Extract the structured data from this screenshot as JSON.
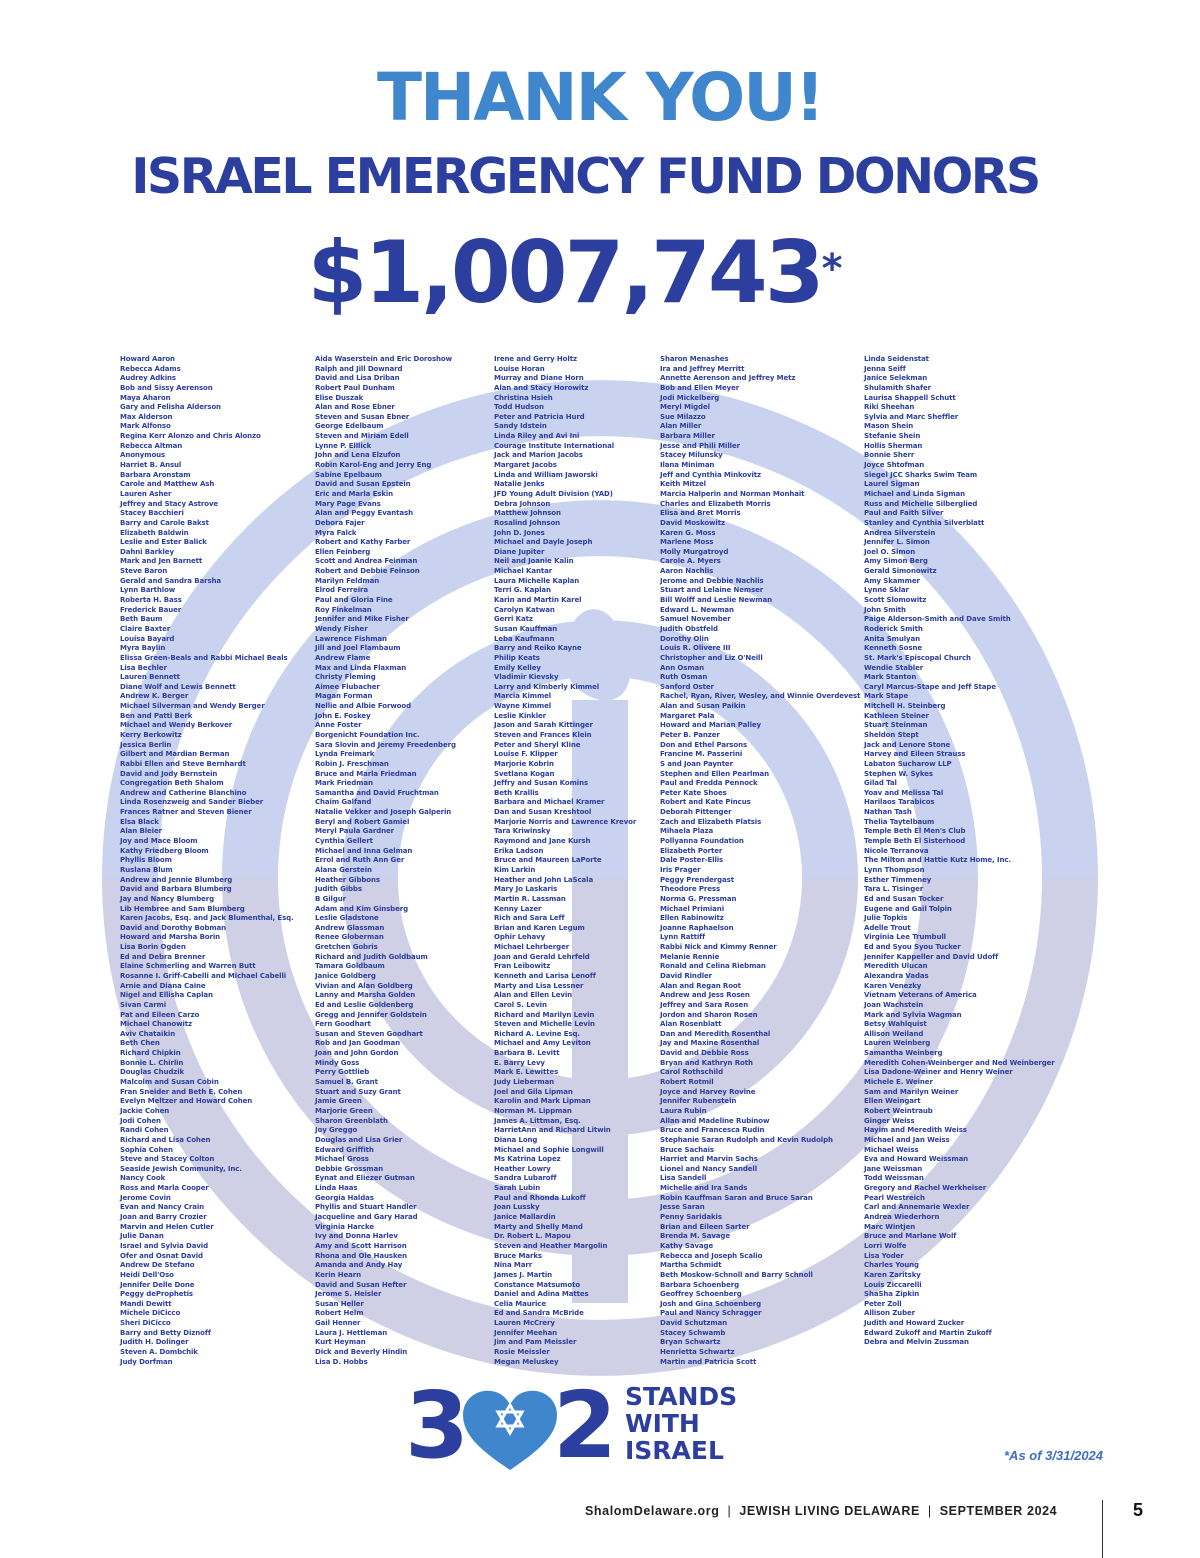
{
  "header": {
    "title": "THANK YOU!",
    "subtitle": "ISRAEL EMERGENCY FUND DONORS",
    "amount": "$1,007,743",
    "amount_note_mark": "*"
  },
  "columns": [
    [
      "Howard Aaron",
      "Rebecca Adams",
      "Audrey Adkins",
      "Bob and Sissy Aerenson",
      "Maya Aharon",
      "Gary and Felisha Alderson",
      "Max Alderson",
      "Mark Alfonso",
      "Regina Kerr Alonzo and Chris Alonzo",
      "Rebecca Altman",
      "Anonymous",
      "Harriet B. Ansul",
      "Barbara Aronstam",
      "Carole and Matthew Ash",
      "Lauren Asher",
      "Jeffrey and Stacy Astrove",
      "Stacey Bacchieri",
      "Barry and Carole Bakst",
      "Elizabeth Baldwin",
      "Leslie and Ester Balick",
      "Dahni Barkley",
      "Mark and Jen Barnett",
      "Steve Baron",
      "Gerald and Sandra Barsha",
      "Lynn Barthlow",
      "Roberta H. Bass",
      "Frederick Bauer",
      "Beth Baum",
      "Claire Baxter",
      "Louisa Bayard",
      "Myra Baylin",
      "Elissa Green-Beals and Rabbi Michael Beals",
      "Lisa Bechler",
      "Lauren Bennett",
      "Diane Wolf and Lewis Bennett",
      "Andrew K. Berger",
      "Michael Silverman and Wendy Berger",
      "Ben and Patti Berk",
      "Michael and Wendy Berkover",
      "Kerry Berkowitz",
      "Jessica Berlin",
      "Gilbert and Mardian Berman",
      "Rabbi Ellen and Steve Bernhardt",
      "David and Jody Bernstein",
      "Congregation Beth Shalom",
      "Andrew and Catherine Blanchino",
      "Linda Rosenzweig and Sander Bieber",
      "Frances Ratner and Steven Biener",
      "Elsa Black",
      "Alan Bleier",
      "Joy and Mace Bloom",
      "Kathy Friedberg Bloom",
      "Phyllis Bloom",
      "Ruslana Blum",
      "Andrew and Jennie Blumberg",
      "David and Barbara Blumberg",
      "Jay and Nancy Blumberg",
      "Lib Hembree and Sam Blumberg",
      "Karen Jacobs, Esq. and Jack Blumenthal, Esq.",
      "David and Dorothy Bobman",
      "Howard and Marsha Borin",
      "Lisa Borin Ogden",
      "Ed and Debra Brenner",
      "Elaine Schmerling and Warren Butt",
      "Rosanne I. Griff-Cabelli and Michael Cabelli",
      "Arnie and Diana Caine",
      "Nigel and Ellisha Caplan",
      "Sivan Carmi",
      "Pat and Eileen Carzo",
      "Michael Chanowitz",
      "Aviv Chataikin",
      "Beth Chen",
      "Richard Chipkin",
      "Bonnie L. Chirlin",
      "Douglas Chudzik",
      "Malcolm and Susan Cobin",
      "Fran Sneider and Beth E. Cohen",
      "Evelyn Meltzer and Howard Cohen",
      "Jackie Cohen",
      "Jodi Cohen",
      "Randi Cohen",
      "Richard and Lisa Cohen",
      "Sophia Cohen",
      "Steve and Stacey Colton",
      "Seaside Jewish Community, Inc.",
      "Nancy Cook",
      "Ross and Marla Cooper",
      "Jerome Covin",
      "Evan and Nancy Crain",
      "Joan and Barry Crozier",
      "Marvin and Helen Cutler",
      "Julie Danan",
      "Israel and Sylvia David",
      "Ofer and Osnat David",
      "Andrew De Stefano",
      "Heidi Dell'Oso",
      "Jennifer Delle Done",
      "Peggy deProphetis",
      "Mandi Dewitt",
      "Michele DiCicco",
      "Sheri DiCicco",
      "Barry and Betty Diznoff",
      "Judith H. Dolinger",
      "Steven A. Dombchik",
      "Judy Dorfman"
    ],
    [
      "Aida Waserstein and Eric Doroshow",
      "Ralph and Jill Downard",
      "David and Lisa Driban",
      "Robert Paul Dunham",
      "Elise Duszak",
      "Alan and Rose Ebner",
      "Steven and Susan Ebner",
      "George Edelbaum",
      "Steven and Miriam Edell",
      "Lynne P. Elllick",
      "John and Lena Elzufon",
      "Robin Karol-Eng and Jerry Eng",
      "Sabine Epelbaum",
      "David and Susan Epstein",
      "Eric and Marla Eskin",
      "Mary Page Evans",
      "Alan and Peggy Evantash",
      "Debora Fajer",
      "Myra Falck",
      "Robert and Kathy Farber",
      "Ellen Feinberg",
      "Scott and Andrea Feinman",
      "Robert and Debbie Feinson",
      "Marilyn Feldman",
      "Elrod Ferreira",
      "Paul and Gloria Fine",
      "Roy Finkelman",
      "Jennifer and Mike Fisher",
      "Wendy Fisher",
      "Lawrence Fishman",
      "Jill and Joel Flambaum",
      "Andrew Flame",
      "Max and Linda Flaxman",
      "Christy Fleming",
      "Aimee Flubacher",
      "Magan Forman",
      "Nellie and Albie Forwood",
      "John E. Foskey",
      "Anne Foster",
      "Borgenicht Foundation Inc.",
      "Sara Slovin and Jeremy Freedenberg",
      "Lynda Freimark",
      "Robin J. Freschman",
      "Bruce and Marla Friedman",
      "Mark Friedman",
      "Samantha and David Fruchtman",
      "Chaim Galfand",
      "Natalie Vekker and Joseph Galperin",
      "Beryl and Robert Gamiel",
      "Meryl Paula Gardner",
      "Cynthia Gellert",
      "Michael and Inna Gelman",
      "Errol and Ruth Ann Ger",
      "Alana Gerstein",
      "Heather Gibbons",
      "Judith Gibbs",
      "B Gilgur",
      "Adam and Kim Ginsberg",
      "Leslie Gladstone",
      "Andrew Glassman",
      "Renee Globerman",
      "Gretchen Gobris",
      "Richard and Judith Goldbaum",
      "Tamara Goldbaum",
      "Janice Goldberg",
      "Vivian and Alan Goldberg",
      "Lanny and Marsha Golden",
      "Ed and Leslie Goldenberg",
      "Gregg and Jennifer Goldstein",
      "Fern Goodhart",
      "Susan and Steven Goodhart",
      "Rob and Jan Goodman",
      "Joan and John Gordon",
      "Mindy Goss",
      "Perry Gottlieb",
      "Samuel B. Grant",
      "Stuart and Suzy Grant",
      "Jamie Green",
      "Marjorie Green",
      "Sharon Greenblath",
      "Joy Greggo",
      "Douglas and Lisa Grier",
      "Edward Griffith",
      "Michael Gross",
      "Debbie Grossman",
      "Eynat and Eliezer Gutman",
      "Linda Haas",
      "Georgia Haldas",
      "Phyllis and Stuart Handler",
      "Jacqueline and Gary Harad",
      "Virginia Harcke",
      "Ivy and Donna Harlev",
      "Amy and Scott Harrison",
      "Rhona and Ole Hausken",
      "Amanda and Andy Hay",
      "Kerin Hearn",
      "David and Susan Hefter",
      "Jerome S. Heisler",
      "Susan Heller",
      "Robert Helm",
      "Gail Henner",
      "Laura J. Hettleman",
      "Kurt Heyman",
      "Dick and Beverly Hindin",
      "Lisa D. Hobbs"
    ],
    [
      "Irene and Gerry Holtz",
      "Louise Horan",
      "Murray and Diane Horn",
      "Alan and Stacy Horowitz",
      "Christina Hsieh",
      "Todd Hudson",
      "Peter and Patricia Hurd",
      "Sandy Idstein",
      "Linda Riley and Avi Ini",
      "Courage Institute International",
      "Jack and Marion Jacobs",
      "Margaret Jacobs",
      "Linda and William Jaworski",
      "Natalie Jenks",
      "JFD Young Adult Division (YAD)",
      "Debra Johnson",
      "Matthew Johnson",
      "Rosalind Johnson",
      "John D. Jones",
      "Michael and Dayle Joseph",
      "Diane Jupiter",
      "Neil and Joanie Kalin",
      "Michael Kantar",
      "Laura Michelle Kaplan",
      "Terri G. Kaplan",
      "Karin and Martin Karel",
      "Carolyn Katwan",
      "Gerri Katz",
      "Susan Kauffman",
      "Leba Kaufmann",
      "Barry and Reiko Kayne",
      "Philip Keats",
      "Emily Kelley",
      "Vladimir Kievsky",
      "Larry and Kimberly Kimmel",
      "Marcia Kimmel",
      "Wayne Kimmel",
      "Leslie Kinkler",
      "Jason and Sarah Kittinger",
      "Steven and Frances Klein",
      "Peter and Sheryl Kline",
      "Louise F. Klipper",
      "Marjorie Kobrin",
      "Svetlana Kogan",
      "Jeffry and Susan Komins",
      "Beth Krallis",
      "Barbara and Michael Kramer",
      "Dan and Susan Kreshtool",
      "Marjorie Norris and Lawrence Krevor",
      "Tara Kriwinsky",
      "Raymond and Jane Kursh",
      "Erika Ladson",
      "Bruce and Maureen LaPorte",
      "Kim Larkin",
      "Heather and John LaScala",
      "Mary Jo Laskaris",
      "Martin R. Lassman",
      "Kenny Lazer",
      "Rich and Sara Leff",
      "Brian and Karen Legum",
      "Ophir Lehavy",
      "Michael Lehrberger",
      "Joan and Gerald Lehrfeld",
      "Fran Leibowitz",
      "Kenneth and Larisa Lenoff",
      "Marty and Lisa Lessner",
      "Alan and Ellen Levin",
      "Carol S. Levin",
      "Richard and Marilyn Levin",
      "Steven and Michelle Levin",
      "Richard A. Levine Esq.",
      "Michael and Amy Leviton",
      "Barbara B. Levitt",
      "E. Barry Levy",
      "Mark E. Lewittes",
      "Judy Lieberman",
      "Joel and Gila Lipman",
      "Karolin and Mark Lipman",
      "Norman M. Lippman",
      "James A. Littman, Esq.",
      "HarrietAnn and Richard Litwin",
      "Diana Long",
      "Michael and Sophie Longwill",
      "Ms Katrina Lopez",
      "Heather Lowry",
      "Sandra Lubaroff",
      "Sarah Lubin",
      "Paul and Rhonda Lukoff",
      "Joan Lussky",
      "Janice Mallardin",
      "Marty and Shelly Mand",
      "Dr. Robert L. Mapou",
      "Steven and Heather Margolin",
      "Bruce Marks",
      "Nina Marr",
      "James J. Martin",
      "Constance Matsumoto",
      "Daniel and Adina Mattes",
      "Celia Maurice",
      "Ed and Sandra McBride",
      "Lauren McCrery",
      "Jennifer Meehan",
      "Jim and Pam Meissler",
      "Rosie Meissler",
      "Megan Meluskey"
    ],
    [
      "Sharon Menashes",
      "Ira and Jeffrey Merritt",
      "Annette Aerenson and Jeffrey Metz",
      "Bob and Ellen Meyer",
      "Jodi Mickelberg",
      "Meryl Migdel",
      "Sue Milazzo",
      "Alan Miller",
      "Barbara Miller",
      "Jesse and Phili Miller",
      "Stacey Milunsky",
      "Ilana Miniman",
      "Jeff and Cynthia Minkovitz",
      "Keith Mitzel",
      "Marcia Halperin and Norman Monhait",
      "Charles and Elizabeth Morris",
      "Elisa and Bret Morris",
      "David Moskowitz",
      "Karen G. Moss",
      "Marlene Moss",
      "Molly Murgatroyd",
      "Carole A. Myers",
      "Aaron Nachlis",
      "Jerome and Debbie Nachlis",
      "Stuart and Lelaine Nemser",
      "Bill Wolff and Leslie Newman",
      "Edward L. Newman",
      "Samuel November",
      "Judith Obstfeld",
      "Dorothy Olin",
      "Louis R. Olivere III",
      "Christopher and Liz O'Neill",
      "Ann Osman",
      "Ruth Osman",
      "Sanford Oster",
      "Rachel, Ryan, River, Wesley, and Winnie Overdevest",
      "Alan and Susan Paikin",
      "Margaret Pala",
      "Howard and Marian Palley",
      "Peter B. Panzer",
      "Don and Ethel Parsons",
      "Francine M. Passerini",
      "S and Joan Paynter",
      "Stephen and Ellen Pearlman",
      "Paul and Fredda Pennock",
      "Peter Kate Shoes",
      "Robert and Kate Pincus",
      "Deborah Pittenger",
      "Zach and Elizabeth Platsis",
      "Mihaela Plaza",
      "Pollyanna Foundation",
      "Elizabeth Porter",
      "Dale Poster-Ellis",
      "Iris Prager",
      "Peggy Prendergast",
      "Theodore Press",
      "Norma G. Pressman",
      "Michael Primiani",
      "Ellen Rabinowitz",
      "Joanne Raphaelson",
      "Lynn Rattiff",
      "Rabbi Nick and Kimmy Renner",
      "Melanie Rennie",
      "Ronald and Celina Riebman",
      "David Rindler",
      "Alan and Regan Root",
      "Andrew and Jess Rosen",
      "Jeffrey and Sara Rosen",
      "Jordon and Sharon Rosen",
      "Alan Rosenblatt",
      "Dan and Meredith Rosenthal",
      "Jay and Maxine Rosenthal",
      "David and Debbie Ross",
      "Bryan and Kathryn Roth",
      "Carol Rothschild",
      "Robert Rotmil",
      "Joyce and Harvey Rovine",
      "Jennifer Rubenstein",
      "Laura Rubin",
      "Allan and Madeline Rubinow",
      "Bruce and Francesca Rudin",
      "Stephanie Saran Rudolph and Kevin Rudolph",
      "Bruce Sachais",
      "Harriet and Marvin Sachs",
      "Lionel and Nancy Sandell",
      "Lisa Sandell",
      "Michelle and Ira Sands",
      "Robin Kauffman Saran and Bruce Saran",
      "Jesse Saran",
      "Penny Saridakis",
      "Brian and Eileen Sarter",
      "Brenda M. Savage",
      "Kathy Savage",
      "Rebecca and Joseph Scalio",
      "Martha Schmidt",
      "Beth Moskow-Schnoll and Barry Schnoll",
      "Barbara Schoenberg",
      "Geoffrey Schoenberg",
      "Josh and Gina Schoenberg",
      "Paul and Nancy Schragger",
      "David Schutzman",
      "Stacey Schwamb",
      "Bryan Schwartz",
      "Henrietta Schwartz",
      "Martin and Patricia Scott"
    ],
    [
      "Linda Seidenstat",
      "Jenna Seiff",
      "Janice Selekman",
      "Shulamith Shafer",
      "Laurisa Shappell Schutt",
      "Riki Sheehan",
      "Sylvia and Marc Sheffler",
      "Mason Shein",
      "Stefanie Shein",
      "Hollis Sherman",
      "Bonnie Sherr",
      "Joyce Shtofman",
      "Siegel JCC Sharks Swim Team",
      "Laurel Sigman",
      "Michael and Linda Sigman",
      "Russ and Michelle Silberglied",
      "Paul and Faith Silver",
      "Stanley and Cynthia Silverblatt",
      "Andrea Silverstein",
      "Jennifer L. Simon",
      "Joel O. Simon",
      "Amy Simon Berg",
      "Gerald Simonowitz",
      "Amy Skammer",
      "Lynne Sklar",
      "Scott Slomowitz",
      "John Smith",
      "Paige Alderson-Smith and Dave Smith",
      "Roderick Smith",
      "Anita Smulyan",
      "Kenneth Sosne",
      "St. Mark's Episcopal Church",
      "Wendie Stabler",
      "Mark Stanton",
      "Caryl Marcus-Stape and Jeff Stape",
      "Mark Stape",
      "Mitchell H. Steinberg",
      "Kathleen Steiner",
      "Stuart Steinman",
      "Sheldon Stept",
      "Jack and Lenore Stone",
      "Harvey and Eileen Strauss",
      "Labaton Sucharow LLP",
      "Stephen W. Sykes",
      "Gilad Tal",
      "Yoav and Melissa Tal",
      "Harilaos Tarabicos",
      "Nathan Tash",
      "Thelia Taytelbaum",
      "Temple Beth El Men's Club",
      "Temple Beth El Sisterhood",
      "Nicole Terranova",
      "The Milton and Hattie Kutz Home, Inc.",
      "Lynn Thompson",
      "Esther Timmeney",
      "Tara L. Tisinger",
      "Ed and Susan Tocker",
      "Eugene and Gail Tolpin",
      "Julie Topkis",
      "Adelle Trout",
      "Virginia Lee Trumbull",
      "Ed and Syou Syou Tucker",
      "Jennifer Kappeller and David Udoff",
      "Meredith Ulucan",
      "Alexandra Vadas",
      "Karen Venezky",
      "Vietnam Veterans of America",
      "Joan Wachstein",
      "Mark and Sylvia Wagman",
      "Betsy Wahlquist",
      "Allison Weiland",
      "Lauren Weinberg",
      "Samantha Weinberg",
      "Meredith Cohen-Weinberger and Ned Weinberger",
      "Lisa Dadone-Weiner and Henry Weiner",
      "Michele E. Weiner",
      "Sam and Marilyn Weiner",
      "Ellen Weingart",
      "Robert Weintraub",
      "Ginger Weiss",
      "Hayim and Meredith Weiss",
      "Michael and Jan Weiss",
      "Michael Weiss",
      "Eva and Howard Weissman",
      "Jane Weissman",
      "Todd Weissman",
      "Gregory and Rachel Werkheiser",
      "Pearl Westreich",
      "Carl and Annemarie Wexler",
      "Andrea Wiederhorn",
      "Marc Wintjen",
      "Bruce and Marlane Wolf",
      "Lorri Wolfe",
      "Lisa Yoder",
      "Charles Young",
      "Karen Zaritsky",
      "Louis Ziccarelli",
      "ShaSha Zipkin",
      "Peter Zoll",
      "Allison Zuber",
      "Judith and Howard Zucker",
      "Edward Zukoff and Martin Zukoff",
      "Debra and Melvin Zussman"
    ]
  ],
  "logo": {
    "digit_left": "3",
    "digit_right": "2",
    "line1": "STANDS",
    "line2": "WITH",
    "line3": "ISRAEL",
    "emblem": "star-of-david-heart-icon"
  },
  "as_of_note": "*As of 3/31/2024",
  "footer": {
    "site": "ShalomDelaware.org",
    "separator": "|",
    "publication": "JEWISH LIVING DELAWARE",
    "issue": "SEPTEMBER 2024",
    "page_number": "5"
  },
  "colors": {
    "title_light_blue": "#3f86cc",
    "title_dark_blue": "#2d3f9e",
    "watermark_blue": "#c9d3ef",
    "watermark_lavender": "#cfcfe6"
  },
  "background_emblem": "menorah-watermark-icon"
}
